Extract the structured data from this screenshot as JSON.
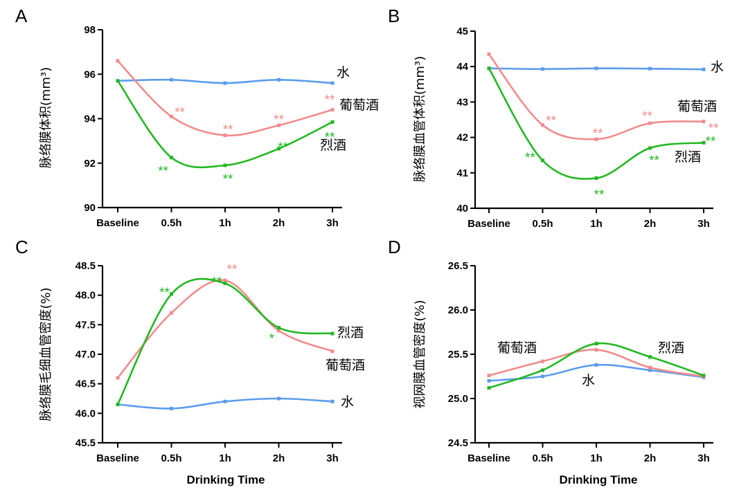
{
  "figure": {
    "colors": {
      "water": "#5B9CEB",
      "wine": "#F08C8C",
      "liquor": "#22B822"
    }
  },
  "chart_data": [
    {
      "type": "line",
      "panel": "A",
      "ylabel": "脉络膜体积(mm³)",
      "xlabel": "",
      "categories": [
        "Baseline",
        "0.5h",
        "1h",
        "2h",
        "3h"
      ],
      "ylim": [
        90,
        98
      ],
      "yticks": [
        "90",
        "92",
        "94",
        "96",
        "98"
      ],
      "series": [
        {
          "key": "water",
          "name": "水",
          "values": [
            95.7,
            95.75,
            95.6,
            95.75,
            95.6
          ]
        },
        {
          "key": "wine",
          "name": "葡萄酒",
          "values": [
            96.6,
            94.1,
            93.25,
            93.7,
            94.4
          ]
        },
        {
          "key": "liquor",
          "name": "烈酒",
          "values": [
            95.7,
            92.25,
            91.9,
            92.65,
            93.85
          ]
        }
      ],
      "annotations": [
        {
          "series": "wine",
          "index": 1,
          "text": "**"
        },
        {
          "series": "wine",
          "index": 2,
          "text": "**"
        },
        {
          "series": "wine",
          "index": 3,
          "text": "**"
        },
        {
          "series": "wine",
          "index": 4,
          "text": "**"
        },
        {
          "series": "liquor",
          "index": 1,
          "text": "**"
        },
        {
          "series": "liquor",
          "index": 2,
          "text": "**"
        },
        {
          "series": "liquor",
          "index": 3,
          "text": "**"
        },
        {
          "series": "liquor",
          "index": 4,
          "text": "**"
        }
      ]
    },
    {
      "type": "line",
      "panel": "B",
      "ylabel": "脉络膜血管体积(mm³)",
      "xlabel": "",
      "categories": [
        "Baseline",
        "0.5h",
        "1h",
        "2h",
        "3h"
      ],
      "ylim": [
        40,
        45
      ],
      "yticks": [
        "40",
        "41",
        "42",
        "43",
        "44",
        "45"
      ],
      "series": [
        {
          "key": "water",
          "name": "水",
          "values": [
            43.95,
            43.93,
            43.95,
            43.94,
            43.92
          ]
        },
        {
          "key": "wine",
          "name": "葡萄酒",
          "values": [
            44.35,
            42.35,
            41.95,
            42.4,
            42.45
          ]
        },
        {
          "key": "liquor",
          "name": "烈酒",
          "values": [
            43.95,
            41.35,
            40.85,
            41.7,
            41.85
          ]
        }
      ],
      "annotations": [
        {
          "series": "wine",
          "index": 1,
          "text": "**"
        },
        {
          "series": "wine",
          "index": 2,
          "text": "**"
        },
        {
          "series": "wine",
          "index": 3,
          "text": "**"
        },
        {
          "series": "wine",
          "index": 4,
          "text": "**"
        },
        {
          "series": "liquor",
          "index": 1,
          "text": "**"
        },
        {
          "series": "liquor",
          "index": 2,
          "text": "**"
        },
        {
          "series": "liquor",
          "index": 3,
          "text": "**"
        },
        {
          "series": "liquor",
          "index": 4,
          "text": "**"
        }
      ]
    },
    {
      "type": "line",
      "panel": "C",
      "ylabel": "脉络膜毛细血管密度(%)",
      "xlabel": "Drinking Time",
      "categories": [
        "Baseline",
        "0.5h",
        "1h",
        "2h",
        "3h"
      ],
      "ylim": [
        45.5,
        48.5
      ],
      "yticks": [
        "45.5",
        "46.0",
        "46.5",
        "47.0",
        "47.5",
        "48.0",
        "48.5"
      ],
      "series": [
        {
          "key": "water",
          "name": "水",
          "values": [
            46.15,
            46.08,
            46.2,
            46.25,
            46.2
          ]
        },
        {
          "key": "wine",
          "name": "葡萄酒",
          "values": [
            46.6,
            47.7,
            48.25,
            47.4,
            47.05
          ]
        },
        {
          "key": "liquor",
          "name": "烈酒",
          "values": [
            46.15,
            48.02,
            48.2,
            47.45,
            47.35
          ]
        }
      ],
      "annotations": [
        {
          "series": "liquor",
          "index": 1,
          "text": "**"
        },
        {
          "series": "liquor",
          "index": 2,
          "text": "**"
        },
        {
          "series": "wine",
          "index": 2,
          "text": "**"
        },
        {
          "series": "liquor",
          "index": 3,
          "text": "*"
        }
      ]
    },
    {
      "type": "line",
      "panel": "D",
      "ylabel": "视网膜血管密度(%)",
      "xlabel": "Drinking Time",
      "categories": [
        "Baseline",
        "0.5h",
        "1h",
        "2h",
        "3h"
      ],
      "ylim": [
        24.5,
        26.5
      ],
      "yticks": [
        "24.5",
        "25.0",
        "25.5",
        "26.0",
        "26.5"
      ],
      "series": [
        {
          "key": "water",
          "name": "水",
          "values": [
            25.2,
            25.25,
            25.38,
            25.32,
            25.24
          ]
        },
        {
          "key": "wine",
          "name": "葡萄酒",
          "values": [
            25.26,
            25.42,
            25.55,
            25.35,
            25.25
          ]
        },
        {
          "key": "liquor",
          "name": "烈酒",
          "values": [
            25.12,
            25.32,
            25.62,
            25.47,
            25.26
          ]
        }
      ],
      "annotations": []
    }
  ]
}
